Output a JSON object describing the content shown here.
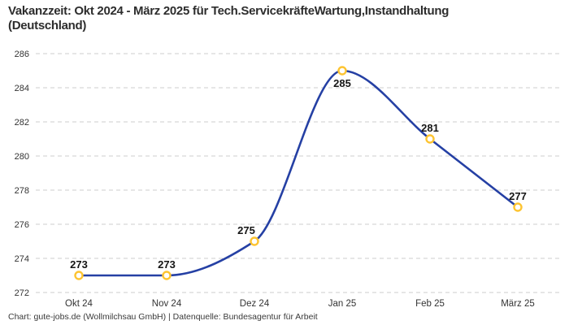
{
  "header": {
    "title_lines": [
      "Vakanzzeit: Okt 2024 - März 2025 für Tech.ServicekräfteWartung,Instandhaltung",
      "(Deutschland)"
    ],
    "title_full": "Vakanzzeit: Okt 2024 - März 2025 für Tech.ServicekräfteWartung,Instandhaltung (Deutschland)"
  },
  "footer": {
    "credit": "Chart: gute-jobs.de (Wollmilchsau GmbH) | Datenquelle: Bundesagentur für Arbeit"
  },
  "chart_data": {
    "type": "line",
    "title": "Vakanzzeit: Okt 2024 - März 2025 für Tech.ServicekräfteWartung,Instandhaltung (Deutschland)",
    "categories": [
      "Okt 24",
      "Nov 24",
      "Dez 24",
      "Jan 25",
      "Feb 25",
      "März 25"
    ],
    "values": [
      273,
      273,
      275,
      285,
      281,
      277
    ],
    "ylim": [
      272,
      286
    ],
    "yticks": [
      272,
      274,
      276,
      278,
      280,
      282,
      284,
      286
    ],
    "xlabel": "",
    "ylabel": "",
    "grid": "horizontal-dashed",
    "legend": "none",
    "curve": "smooth-monotone",
    "label_positions": [
      "above",
      "above",
      "above-left",
      "below",
      "above",
      "above"
    ],
    "colors": {
      "line": "#2540a4",
      "marker_stroke": "#fdc431",
      "marker_fill": "#ffffff",
      "grid": "#cccccc",
      "tick_text": "#333333",
      "value_label": "#151515"
    }
  }
}
